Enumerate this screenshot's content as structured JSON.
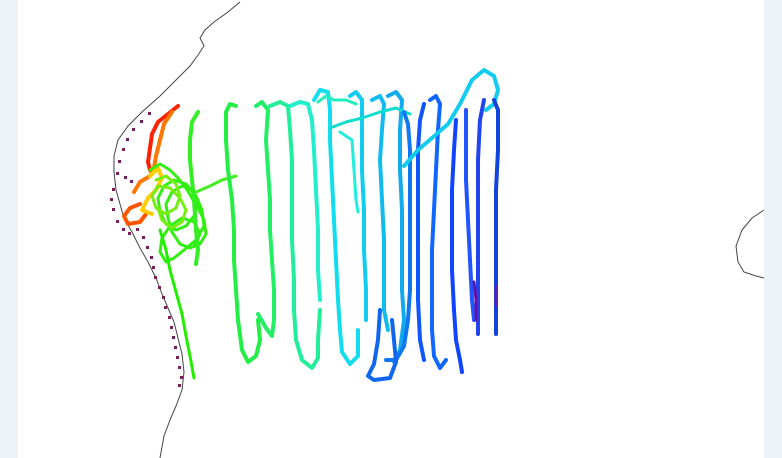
{
  "map": {
    "colors": {
      "background": "#eef3f8",
      "panel": "#ffffff",
      "coastline": "#444444",
      "observation_dots": "#7a1f5a"
    },
    "colormap": [
      "#ff0000",
      "#ff8800",
      "#ffff00",
      "#00ff00",
      "#00ffdd",
      "#00aaff",
      "#0000ff",
      "#7700aa"
    ],
    "track_lines": [
      {
        "name": "track-reddish",
        "color": "#ff3300"
      },
      {
        "name": "track-green",
        "color": "#22ee22"
      },
      {
        "name": "track-cyan",
        "color": "#22ddee"
      },
      {
        "name": "track-blue",
        "color": "#1155ee"
      },
      {
        "name": "track-purple",
        "color": "#5511aa"
      }
    ]
  }
}
